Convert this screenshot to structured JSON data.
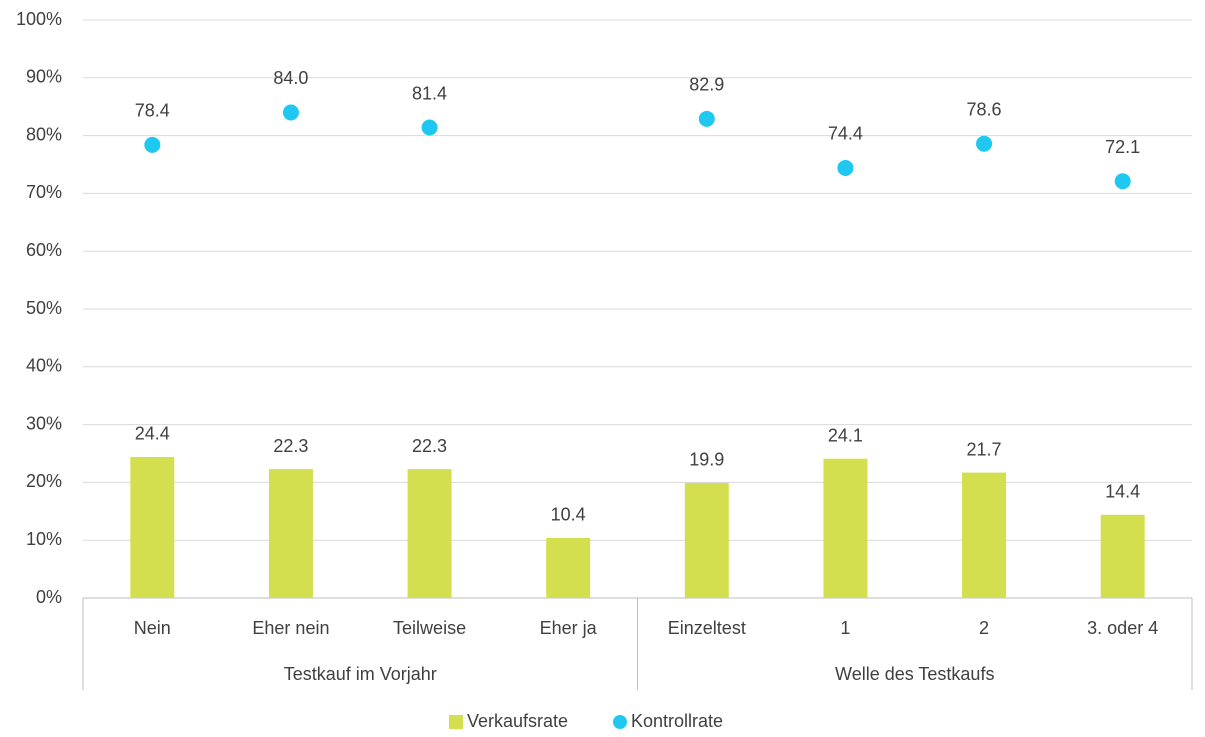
{
  "chart_data": {
    "type": "bar",
    "groups": [
      {
        "label": "Testkauf im Vorjahr",
        "categories": [
          "Nein",
          "Eher nein",
          "Teilweise",
          "Eher ja"
        ]
      },
      {
        "label": "Welle des Testkaufs",
        "categories": [
          "Einzeltest",
          "1",
          "2",
          "3. oder 4"
        ]
      }
    ],
    "series": [
      {
        "name": "Verkaufsrate",
        "type": "bar",
        "color": "#d4df50",
        "values": [
          24.4,
          22.3,
          22.3,
          10.4,
          19.9,
          24.1,
          21.7,
          14.4
        ]
      },
      {
        "name": "Kontrollrate",
        "type": "scatter",
        "color": "#1ec8f0",
        "values": [
          78.4,
          84.0,
          81.4,
          null,
          82.9,
          74.4,
          78.6,
          72.1
        ],
        "value_labels": [
          "78.4",
          "84.0",
          "81.4",
          null,
          "82.9",
          "74.4",
          "78.6",
          "72.1"
        ]
      }
    ],
    "ylim": [
      0,
      100
    ],
    "yticks": [
      {
        "value": 0,
        "label": "0%"
      },
      {
        "value": 10,
        "label": "10%"
      },
      {
        "value": 20,
        "label": "20%"
      },
      {
        "value": 30,
        "label": "30%"
      },
      {
        "value": 40,
        "label": "40%"
      },
      {
        "value": 50,
        "label": "50%"
      },
      {
        "value": 60,
        "label": "60%"
      },
      {
        "value": 70,
        "label": "70%"
      },
      {
        "value": 80,
        "label": "80%"
      },
      {
        "value": 90,
        "label": "90%"
      },
      {
        "value": 100,
        "label": "100%"
      }
    ],
    "grid": true,
    "legend": "bottom"
  }
}
